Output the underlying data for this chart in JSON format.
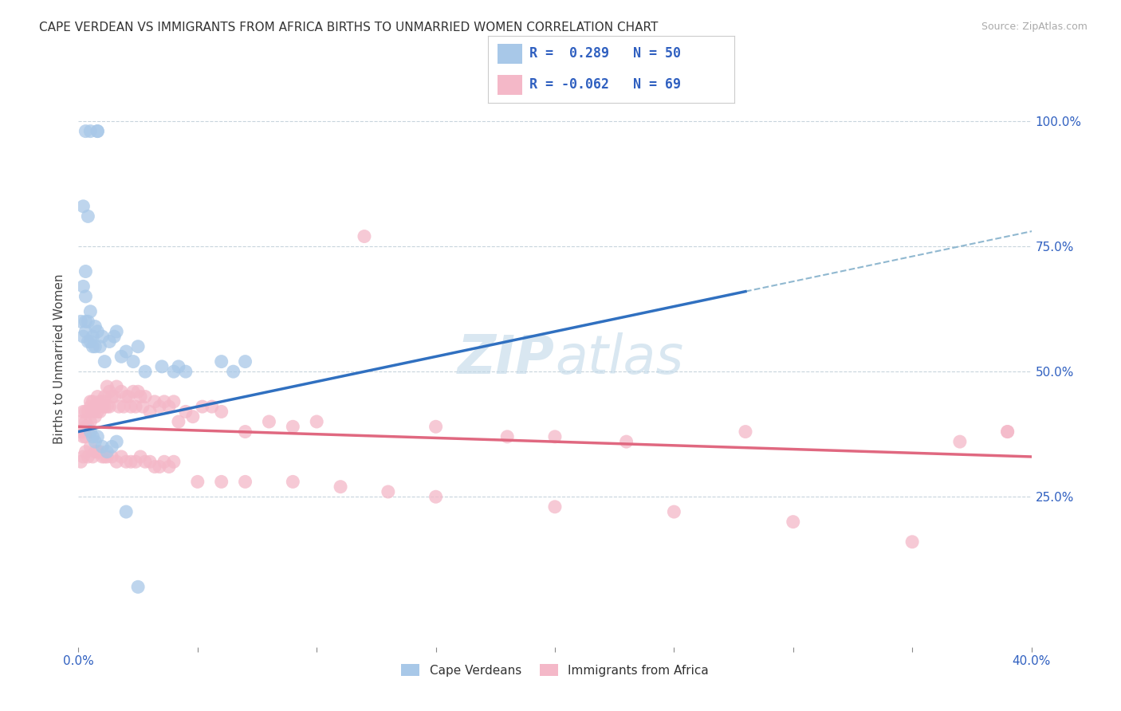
{
  "title": "CAPE VERDEAN VS IMMIGRANTS FROM AFRICA BIRTHS TO UNMARRIED WOMEN CORRELATION CHART",
  "source": "Source: ZipAtlas.com",
  "ylabel": "Births to Unmarried Women",
  "ytick_labels": [
    "25.0%",
    "50.0%",
    "75.0%",
    "100.0%"
  ],
  "ytick_values": [
    0.25,
    0.5,
    0.75,
    1.0
  ],
  "xlim": [
    0.0,
    0.4
  ],
  "ylim": [
    -0.05,
    1.1
  ],
  "blue_color": "#a8c8e8",
  "pink_color": "#f4b8c8",
  "blue_line_color": "#3070c0",
  "pink_line_color": "#e06880",
  "dashed_line_color": "#90b8d0",
  "legend_text_color": "#3060c0",
  "watermark_color": "#d0e4f0",
  "cape_verdean_x": [
    0.003,
    0.005,
    0.008,
    0.008,
    0.002,
    0.004,
    0.002,
    0.003,
    0.003,
    0.001,
    0.002,
    0.003,
    0.003,
    0.004,
    0.004,
    0.005,
    0.005,
    0.006,
    0.006,
    0.007,
    0.007,
    0.008,
    0.009,
    0.01,
    0.011,
    0.013,
    0.015,
    0.016,
    0.018,
    0.02,
    0.023,
    0.025,
    0.028,
    0.035,
    0.04,
    0.042,
    0.045,
    0.06,
    0.065,
    0.07,
    0.005,
    0.006,
    0.007,
    0.008,
    0.01,
    0.012,
    0.014,
    0.016,
    0.02,
    0.025
  ],
  "cape_verdean_y": [
    0.98,
    0.98,
    0.98,
    0.98,
    0.83,
    0.81,
    0.67,
    0.65,
    0.7,
    0.6,
    0.57,
    0.58,
    0.6,
    0.56,
    0.6,
    0.56,
    0.62,
    0.55,
    0.57,
    0.55,
    0.59,
    0.58,
    0.55,
    0.57,
    0.52,
    0.56,
    0.57,
    0.58,
    0.53,
    0.54,
    0.52,
    0.55,
    0.5,
    0.51,
    0.5,
    0.51,
    0.5,
    0.52,
    0.5,
    0.52,
    0.38,
    0.37,
    0.36,
    0.37,
    0.35,
    0.34,
    0.35,
    0.36,
    0.22,
    0.07
  ],
  "africa_x": [
    0.001,
    0.001,
    0.002,
    0.002,
    0.002,
    0.003,
    0.003,
    0.003,
    0.003,
    0.004,
    0.004,
    0.004,
    0.005,
    0.005,
    0.005,
    0.006,
    0.006,
    0.007,
    0.007,
    0.008,
    0.008,
    0.009,
    0.009,
    0.01,
    0.01,
    0.011,
    0.011,
    0.012,
    0.012,
    0.013,
    0.013,
    0.014,
    0.015,
    0.016,
    0.017,
    0.018,
    0.019,
    0.02,
    0.021,
    0.022,
    0.023,
    0.024,
    0.025,
    0.026,
    0.027,
    0.028,
    0.03,
    0.032,
    0.034,
    0.036,
    0.038,
    0.04,
    0.042,
    0.045,
    0.048,
    0.052,
    0.056,
    0.06,
    0.07,
    0.08,
    0.09,
    0.1,
    0.12,
    0.15,
    0.18,
    0.2,
    0.23,
    0.28,
    0.37,
    0.39
  ],
  "africa_y": [
    0.38,
    0.4,
    0.38,
    0.42,
    0.37,
    0.42,
    0.39,
    0.37,
    0.4,
    0.42,
    0.39,
    0.38,
    0.44,
    0.4,
    0.43,
    0.42,
    0.44,
    0.43,
    0.41,
    0.45,
    0.42,
    0.44,
    0.42,
    0.44,
    0.43,
    0.45,
    0.43,
    0.47,
    0.43,
    0.46,
    0.43,
    0.45,
    0.45,
    0.47,
    0.43,
    0.46,
    0.43,
    0.45,
    0.45,
    0.43,
    0.46,
    0.43,
    0.46,
    0.45,
    0.43,
    0.45,
    0.42,
    0.44,
    0.43,
    0.44,
    0.43,
    0.44,
    0.4,
    0.42,
    0.41,
    0.43,
    0.43,
    0.42,
    0.38,
    0.4,
    0.39,
    0.4,
    0.77,
    0.39,
    0.37,
    0.37,
    0.36,
    0.38,
    0.36,
    0.38
  ],
  "africa_low_x": [
    0.001,
    0.002,
    0.003,
    0.004,
    0.005,
    0.006,
    0.007,
    0.008,
    0.009,
    0.01,
    0.011,
    0.012,
    0.014,
    0.016,
    0.018,
    0.02,
    0.022,
    0.024,
    0.026,
    0.028,
    0.03,
    0.032,
    0.034,
    0.036,
    0.038,
    0.04,
    0.05,
    0.06,
    0.07,
    0.09,
    0.11,
    0.13,
    0.15,
    0.2,
    0.25,
    0.3,
    0.35,
    0.39
  ],
  "africa_low_y": [
    0.32,
    0.33,
    0.34,
    0.33,
    0.35,
    0.33,
    0.34,
    0.34,
    0.34,
    0.33,
    0.33,
    0.33,
    0.33,
    0.32,
    0.33,
    0.32,
    0.32,
    0.32,
    0.33,
    0.32,
    0.32,
    0.31,
    0.31,
    0.32,
    0.31,
    0.32,
    0.28,
    0.28,
    0.28,
    0.28,
    0.27,
    0.26,
    0.25,
    0.23,
    0.22,
    0.2,
    0.16,
    0.38
  ]
}
